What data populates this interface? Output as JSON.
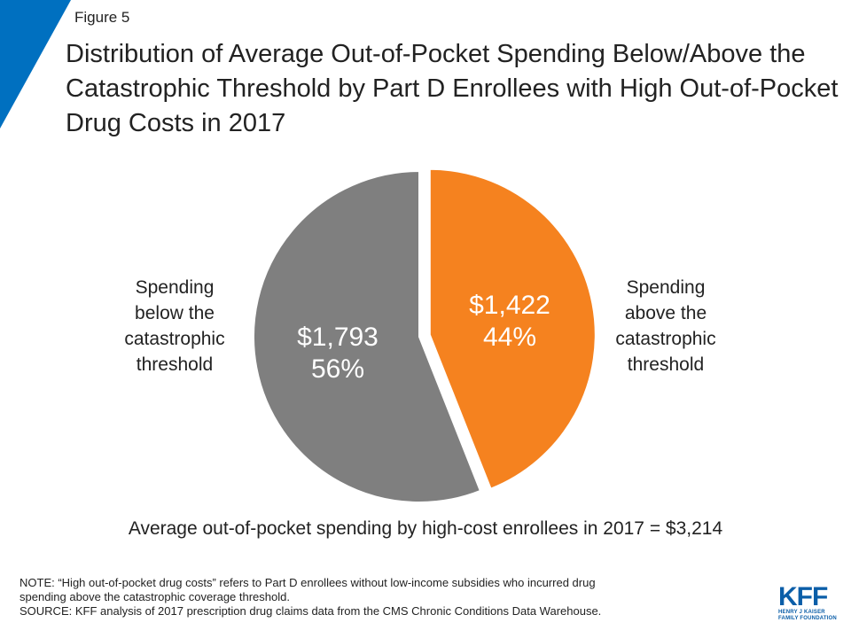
{
  "figure_label": "Figure 5",
  "title": "Distribution of Average Out-of-Pocket Spending Below/Above the Catastrophic Threshold by Part D Enrollees with High Out-of-Pocket Drug Costs in 2017",
  "colors": {
    "accent": "#0070c0",
    "gray": "#7f7f7f",
    "orange": "#f5821f",
    "logo": "#0b5ea8"
  },
  "chart_data": {
    "type": "pie",
    "title": "Distribution of Average Out-of-Pocket Spending Below/Above the Catastrophic Threshold by Part D Enrollees with High Out-of-Pocket Drug Costs in 2017",
    "slices": [
      {
        "label": "Spending below the catastrophic threshold",
        "amount_label": "$1,793",
        "percent_label": "56%",
        "value": 56,
        "color": "#7f7f7f"
      },
      {
        "label": "Spending above the catastrophic threshold",
        "amount_label": "$1,422",
        "percent_label": "44%",
        "value": 44,
        "color": "#f5821f"
      }
    ],
    "exploded_slice": 1
  },
  "labels": {
    "left": "Spending\nbelow the\ncatastrophic\nthreshold",
    "right": "Spending\nabove the\ncatastrophic\nthreshold"
  },
  "total_line": "Average out-of-pocket spending by high-cost enrollees in 2017 = $3,214",
  "note": "NOTE: “High out-of-pocket drug costs” refers to Part D enrollees without low-income subsidies who incurred drug\nspending above the catastrophic coverage threshold.",
  "source": "SOURCE: KFF analysis of 2017 prescription drug claims data from the CMS Chronic Conditions Data Warehouse.",
  "logo": {
    "letters": "KFF",
    "line1": "HENRY J KAISER",
    "line2": "FAMILY FOUNDATION"
  }
}
